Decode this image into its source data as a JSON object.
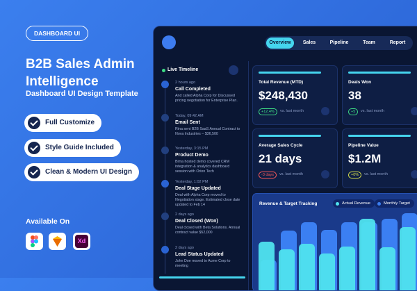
{
  "badge": "DASHBOARD UI",
  "title": "B2B Sales Admin Intelligence",
  "subtitle": "Dashboard UI Design Template",
  "features": [
    "Full Customize",
    "Style Guide Included",
    "Clean & Modern UI Design"
  ],
  "available_label": "Available On",
  "platform_xd": "Xd",
  "nav": [
    "Overview",
    "Sales",
    "Pipeline",
    "Team",
    "Report"
  ],
  "timeline": {
    "title": "Live Timeline",
    "items": [
      {
        "time": "2 hours ago",
        "title": "Call Completed",
        "text": "And called Alpha Corp for Discussed pricing negotiation for Enterprise Plan."
      },
      {
        "time": "Today, 09:42 AM",
        "title": "Email Sent",
        "text": "Rina sent B2B SaaS Annual Contract to Nova Industries – $36,500"
      },
      {
        "time": "Yesterday, 3:15 PM",
        "title": "Product Demo",
        "text": "Bima hosted demo covered CRM integration & analytics dashboard session with Orion Tech"
      },
      {
        "time": "Yesterday, 1:02 PM",
        "title": "Deal Stage Updated",
        "text": "Deal with Alpha Corp moved to Negotiation stage. Estimated close date updated to Feb 14"
      },
      {
        "time": "2 days ago",
        "title": "Deal Closed (Won)",
        "text": "Deal closed with Beta Solutions. Annual contract value $52,000"
      },
      {
        "time": "2 days ago",
        "title": "Lead Status Updated",
        "text": "John Doe moved to Acme Corp to meeting"
      }
    ]
  },
  "kpis": [
    {
      "label": "Total Revenue (MTD)",
      "value": "$248,430",
      "change": "+12.4%",
      "comparison": "vs. last month",
      "color": "#3ddc84"
    },
    {
      "label": "Deals Won",
      "value": "38",
      "change": "+5",
      "comparison": "vs. last month",
      "color": "#3ddc84"
    },
    {
      "label": "Average Sales Cycle",
      "value": "21 days",
      "change": "-3 days",
      "comparison": "vs. last month",
      "color": "#ff5a5a"
    },
    {
      "label": "Pipeline Value",
      "value": "$1.2M",
      "change": "+0%",
      "comparison": "vs. last month",
      "color": "#d8e04a"
    }
  ],
  "revenue_chart": {
    "title": "Revenue & Target Tracking",
    "ylim": [
      0,
      100
    ],
    "series": [
      {
        "name": "Actual Revenue",
        "color": "#4fe3ee",
        "values": [
          64,
          55,
          62,
          50,
          58,
          93,
          57,
          83
        ]
      },
      {
        "name": "Monthly Target",
        "color": "#3b7ff2",
        "values": [
          42,
          78,
          89,
          79,
          89,
          89,
          93,
          100
        ]
      }
    ]
  }
}
